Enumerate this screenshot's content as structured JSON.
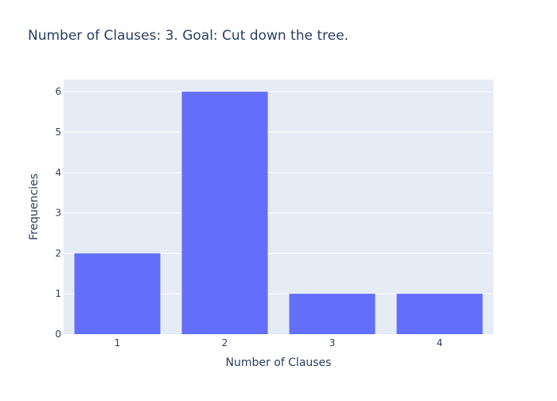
{
  "chart_data": {
    "type": "bar",
    "title": "Number of Clauses: 3. Goal: Cut down the tree.",
    "xlabel": "Number of Clauses",
    "ylabel": "Frequencies",
    "categories": [
      "1",
      "2",
      "3",
      "4"
    ],
    "values": [
      2,
      6,
      1,
      1
    ],
    "ylim": [
      0,
      6.3
    ],
    "yticks": [
      0,
      1,
      2,
      3,
      4,
      5,
      6
    ],
    "grid": true,
    "bar_color": "#636efa",
    "plot_bg": "#e5ecf6",
    "gridline_color": "#ffffff",
    "text_color": "#2a3f5f"
  }
}
